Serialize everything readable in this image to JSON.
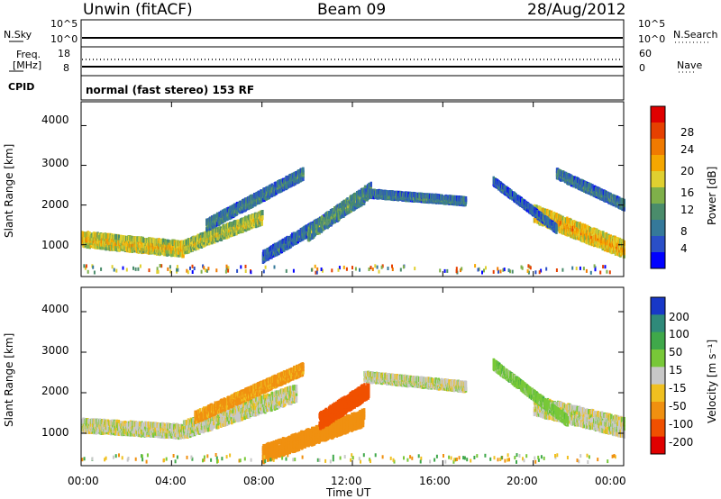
{
  "header": {
    "station": "Unwin (fitACF)",
    "beam": "Beam 09",
    "date": "28/Aug/2012"
  },
  "strip": {
    "nsky_label": "N.Sky",
    "nsky_ticks": [
      "10^5",
      "10^0"
    ],
    "nsearch_label": "N.Search",
    "nsearch_ticks": [
      "10^5",
      "10^0"
    ],
    "freq_label_line1": "Freq.",
    "freq_label_line2": "[MHz]",
    "freq_ticks": [
      "18",
      "8"
    ],
    "nave_label": "Nave",
    "nave_ticks": [
      "60",
      "0"
    ],
    "cpid_label": "CPID",
    "cpid_text": "normal (fast stereo) 153 RF"
  },
  "panels": {
    "y_label": "Slant Range [km]",
    "y_ticks": [
      "4000",
      "3000",
      "2000",
      "1000"
    ],
    "x_label": "Time UT",
    "x_ticks": [
      "00:00",
      "04:00",
      "08:00",
      "12:00",
      "16:00",
      "20:00",
      "00:00"
    ]
  },
  "colorbars": {
    "power_label": "Power [dB]",
    "power_ticks": [
      "28",
      "24",
      "20",
      "16",
      "12",
      "8",
      "4"
    ],
    "power_colors": [
      "#0000ff",
      "#2a4fc8",
      "#35799a",
      "#4a8c6b",
      "#7fb04a",
      "#e0d030",
      "#f5a700",
      "#f07a00",
      "#e64000",
      "#e00000"
    ],
    "velocity_label": "Velocity [m s⁻¹]",
    "velocity_ticks": [
      "200",
      "100",
      "50",
      "15",
      "-15",
      "-50",
      "-100",
      "-200"
    ],
    "velocity_colors": [
      "#1838c8",
      "#2f8a7a",
      "#3fa84a",
      "#78c838",
      "#c8c8c8",
      "#f0c020",
      "#f09010",
      "#f05000",
      "#e00000"
    ]
  },
  "chart_data": [
    {
      "type": "heatmap",
      "title": "Power [dB]",
      "xlabel": "Time UT",
      "ylabel": "Slant Range [km]",
      "xlim": [
        "00:00",
        "24:00"
      ],
      "ylim": [
        200,
        4600
      ],
      "colorbar_range": [
        0,
        32
      ],
      "bands": [
        {
          "t0": 0.0,
          "t1": 4.5,
          "r0": 1150,
          "r1": 900,
          "w": 350,
          "level": 20
        },
        {
          "t0": 4.5,
          "t1": 8.0,
          "r0": 950,
          "r1": 1700,
          "w": 300,
          "level": 18
        },
        {
          "t0": 5.5,
          "t1": 9.8,
          "r0": 1500,
          "r1": 2800,
          "w": 250,
          "level": 10
        },
        {
          "t0": 8.0,
          "t1": 12.5,
          "r0": 700,
          "r1": 2200,
          "w": 250,
          "level": 8
        },
        {
          "t0": 10.0,
          "t1": 12.8,
          "r0": 1300,
          "r1": 2400,
          "w": 350,
          "level": 12
        },
        {
          "t0": 12.5,
          "t1": 17.0,
          "r0": 2300,
          "r1": 2100,
          "w": 150,
          "level": 10
        },
        {
          "t0": 20.0,
          "t1": 24.0,
          "r0": 1800,
          "r1": 900,
          "w": 400,
          "level": 22
        },
        {
          "t0": 18.2,
          "t1": 21.0,
          "r0": 2600,
          "r1": 1400,
          "w": 150,
          "level": 8
        },
        {
          "t0": 21.0,
          "t1": 24.0,
          "r0": 2800,
          "r1": 2000,
          "w": 200,
          "level": 10
        }
      ]
    },
    {
      "type": "heatmap",
      "title": "Velocity [m s⁻¹]",
      "xlabel": "Time UT",
      "ylabel": "Slant Range [km]",
      "xlim": [
        "00:00",
        "24:00"
      ],
      "ylim": [
        200,
        4600
      ],
      "colorbar_range": [
        -200,
        200
      ],
      "bands": [
        {
          "t0": 0.0,
          "t1": 4.5,
          "r0": 1200,
          "r1": 1050,
          "w": 300,
          "v": 0
        },
        {
          "t0": 4.5,
          "t1": 9.5,
          "r0": 1100,
          "r1": 2000,
          "w": 400,
          "v": 0
        },
        {
          "t0": 5.0,
          "t1": 9.8,
          "r0": 1400,
          "r1": 2600,
          "w": 250,
          "v": -40
        },
        {
          "t0": 8.0,
          "t1": 12.5,
          "r0": 500,
          "r1": 1400,
          "w": 400,
          "v": -60
        },
        {
          "t0": 10.5,
          "t1": 12.7,
          "r0": 1300,
          "r1": 2100,
          "w": 400,
          "v": -110
        },
        {
          "t0": 12.5,
          "t1": 17.0,
          "r0": 2400,
          "r1": 2150,
          "w": 200,
          "v": 0
        },
        {
          "t0": 20.0,
          "t1": 24.0,
          "r0": 1700,
          "r1": 1150,
          "w": 450,
          "v": 0
        },
        {
          "t0": 18.2,
          "t1": 21.5,
          "r0": 2700,
          "r1": 1300,
          "w": 200,
          "v": 20
        }
      ]
    }
  ]
}
